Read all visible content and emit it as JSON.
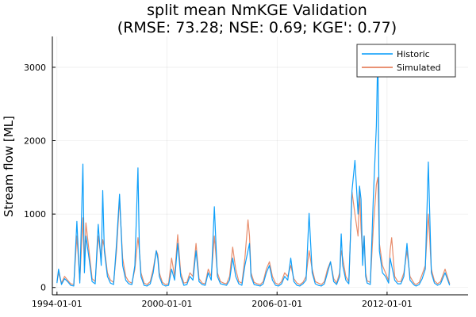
{
  "chart_data": {
    "type": "line",
    "title": "split mean NmKGE Validation",
    "subtitle": "(RMSE: 73.28; NSE: 0.69; KGE': 0.77)",
    "xlabel": "",
    "ylabel": "Stream flow [ML]",
    "xlim": [
      "1993-10-01",
      "2016-06-01"
    ],
    "ylim": [
      -100,
      3420
    ],
    "x_ticks": [
      "1994-01-01",
      "2000-01-01",
      "2006-01-01",
      "2012-01-01"
    ],
    "y_ticks": [
      0,
      1000,
      2000,
      3000
    ],
    "grid": true,
    "legend_position": "top-right",
    "series": [
      {
        "name": "Historic",
        "color": "#009AFA",
        "x": [
          "1994-01-01",
          "1994-02-01",
          "1994-04-01",
          "1994-06-01",
          "1994-08-01",
          "1994-10-01",
          "1994-12-01",
          "1995-02-01",
          "1995-04-01",
          "1995-06-01",
          "1995-07-01",
          "1995-08-01",
          "1995-10-01",
          "1995-12-01",
          "1996-02-01",
          "1996-04-01",
          "1996-06-01",
          "1996-07-01",
          "1996-08-01",
          "1996-10-01",
          "1996-12-01",
          "1997-02-01",
          "1997-04-01",
          "1997-06-01",
          "1997-08-01",
          "1997-10-01",
          "1997-12-01",
          "1998-02-01",
          "1998-04-01",
          "1998-06-01",
          "1998-07-01",
          "1998-08-01",
          "1998-10-01",
          "1998-12-01",
          "1999-02-01",
          "1999-04-01",
          "1999-06-01",
          "1999-07-01",
          "1999-08-01",
          "1999-10-01",
          "1999-12-01",
          "2000-02-01",
          "2000-04-01",
          "2000-06-01",
          "2000-08-01",
          "2000-10-01",
          "2000-12-01",
          "2001-02-01",
          "2001-04-01",
          "2001-06-01",
          "2001-08-01",
          "2001-10-01",
          "2001-12-01",
          "2002-02-01",
          "2002-04-01",
          "2002-06-01",
          "2002-08-01",
          "2002-10-01",
          "2002-12-01",
          "2003-02-01",
          "2003-04-01",
          "2003-06-01",
          "2003-08-01",
          "2003-10-01",
          "2003-12-01",
          "2004-02-01",
          "2004-04-01",
          "2004-06-01",
          "2004-07-01",
          "2004-08-01",
          "2004-10-01",
          "2004-12-01",
          "2005-02-01",
          "2005-04-01",
          "2005-06-01",
          "2005-08-01",
          "2005-10-01",
          "2005-12-01",
          "2006-02-01",
          "2006-04-01",
          "2006-06-01",
          "2006-08-01",
          "2006-10-01",
          "2006-12-01",
          "2007-02-01",
          "2007-04-01",
          "2007-06-01",
          "2007-08-01",
          "2007-10-01",
          "2007-12-01",
          "2008-02-01",
          "2008-04-01",
          "2008-06-01",
          "2008-08-01",
          "2008-10-01",
          "2008-12-01",
          "2009-02-01",
          "2009-04-01",
          "2009-06-01",
          "2009-07-01",
          "2009-08-01",
          "2009-10-01",
          "2009-12-01",
          "2010-02-01",
          "2010-04-01",
          "2010-06-01",
          "2010-07-01",
          "2010-08-01",
          "2010-09-01",
          "2010-10-01",
          "2010-11-01",
          "2010-12-01",
          "2011-02-01",
          "2011-04-01",
          "2011-06-01",
          "2011-07-01",
          "2011-08-01",
          "2011-10-01",
          "2011-12-01",
          "2012-02-01",
          "2012-03-01",
          "2012-04-01",
          "2012-06-01",
          "2012-08-01",
          "2012-10-01",
          "2012-12-01",
          "2013-02-01",
          "2013-04-01",
          "2013-06-01",
          "2013-07-01",
          "2013-08-01",
          "2013-10-01",
          "2013-12-01",
          "2014-02-01",
          "2014-04-01",
          "2014-06-01",
          "2014-08-01",
          "2014-10-01",
          "2014-12-01",
          "2015-03-01",
          "2015-06-01"
        ],
        "y": [
          60,
          250,
          40,
          120,
          80,
          30,
          20,
          900,
          60,
          1680,
          200,
          700,
          400,
          80,
          50,
          860,
          300,
          1320,
          500,
          150,
          60,
          40,
          600,
          1270,
          300,
          100,
          50,
          40,
          300,
          1630,
          500,
          150,
          30,
          20,
          50,
          200,
          500,
          400,
          150,
          40,
          20,
          30,
          250,
          100,
          600,
          150,
          30,
          40,
          150,
          100,
          500,
          80,
          40,
          30,
          200,
          100,
          1100,
          150,
          50,
          40,
          30,
          100,
          400,
          150,
          50,
          30,
          300,
          500,
          600,
          150,
          40,
          30,
          20,
          50,
          200,
          300,
          100,
          30,
          20,
          50,
          150,
          100,
          400,
          80,
          30,
          20,
          50,
          100,
          1010,
          200,
          50,
          30,
          20,
          50,
          200,
          350,
          80,
          40,
          150,
          730,
          300,
          100,
          50,
          1320,
          1730,
          1000,
          1380,
          1200,
          300,
          700,
          150,
          60,
          40,
          1200,
          2200,
          3260,
          500,
          200,
          150,
          60,
          400,
          300,
          100,
          50,
          50,
          150,
          600,
          100,
          50,
          30,
          20,
          40,
          120,
          250,
          1710,
          200,
          60,
          30,
          50,
          200,
          30
        ]
      },
      {
        "name": "Simulated",
        "color": "#E26F46",
        "x": [
          "1994-01-01",
          "1994-02-01",
          "1994-04-01",
          "1994-06-01",
          "1994-08-01",
          "1994-10-01",
          "1994-12-01",
          "1995-02-01",
          "1995-04-01",
          "1995-06-01",
          "1995-07-01",
          "1995-08-01",
          "1995-10-01",
          "1995-12-01",
          "1996-02-01",
          "1996-04-01",
          "1996-06-01",
          "1996-07-01",
          "1996-08-01",
          "1996-10-01",
          "1996-12-01",
          "1997-02-01",
          "1997-04-01",
          "1997-06-01",
          "1997-08-01",
          "1997-10-01",
          "1997-12-01",
          "1998-02-01",
          "1998-04-01",
          "1998-06-01",
          "1998-07-01",
          "1998-08-01",
          "1998-10-01",
          "1998-12-01",
          "1999-02-01",
          "1999-04-01",
          "1999-06-01",
          "1999-07-01",
          "1999-08-01",
          "1999-10-01",
          "1999-12-01",
          "2000-02-01",
          "2000-04-01",
          "2000-06-01",
          "2000-08-01",
          "2000-10-01",
          "2000-12-01",
          "2001-02-01",
          "2001-04-01",
          "2001-06-01",
          "2001-08-01",
          "2001-10-01",
          "2001-12-01",
          "2002-02-01",
          "2002-04-01",
          "2002-06-01",
          "2002-08-01",
          "2002-10-01",
          "2002-12-01",
          "2003-02-01",
          "2003-04-01",
          "2003-06-01",
          "2003-08-01",
          "2003-10-01",
          "2003-12-01",
          "2004-02-01",
          "2004-04-01",
          "2004-06-01",
          "2004-07-01",
          "2004-08-01",
          "2004-10-01",
          "2004-12-01",
          "2005-02-01",
          "2005-04-01",
          "2005-06-01",
          "2005-08-01",
          "2005-10-01",
          "2005-12-01",
          "2006-02-01",
          "2006-04-01",
          "2006-06-01",
          "2006-08-01",
          "2006-10-01",
          "2006-12-01",
          "2007-02-01",
          "2007-04-01",
          "2007-06-01",
          "2007-08-01",
          "2007-10-01",
          "2007-12-01",
          "2008-02-01",
          "2008-04-01",
          "2008-06-01",
          "2008-08-01",
          "2008-10-01",
          "2008-12-01",
          "2009-02-01",
          "2009-04-01",
          "2009-06-01",
          "2009-07-01",
          "2009-08-01",
          "2009-10-01",
          "2009-12-01",
          "2010-02-01",
          "2010-04-01",
          "2010-06-01",
          "2010-07-01",
          "2010-08-01",
          "2010-09-01",
          "2010-10-01",
          "2010-11-01",
          "2010-12-01",
          "2011-02-01",
          "2011-04-01",
          "2011-06-01",
          "2011-07-01",
          "2011-08-01",
          "2011-10-01",
          "2011-12-01",
          "2012-02-01",
          "2012-03-01",
          "2012-04-01",
          "2012-06-01",
          "2012-08-01",
          "2012-10-01",
          "2012-12-01",
          "2013-02-01",
          "2013-04-01",
          "2013-06-01",
          "2013-07-01",
          "2013-08-01",
          "2013-10-01",
          "2013-12-01",
          "2014-02-01",
          "2014-04-01",
          "2014-06-01",
          "2014-08-01",
          "2014-10-01",
          "2014-12-01",
          "2015-03-01",
          "2015-06-01"
        ],
        "y": [
          80,
          200,
          60,
          150,
          100,
          50,
          40,
          700,
          100,
          950,
          300,
          880,
          500,
          120,
          80,
          700,
          400,
          650,
          550,
          200,
          100,
          70,
          500,
          1200,
          400,
          150,
          80,
          60,
          250,
          680,
          500,
          200,
          60,
          40,
          80,
          250,
          500,
          450,
          200,
          70,
          40,
          50,
          400,
          150,
          720,
          200,
          60,
          70,
          200,
          150,
          600,
          120,
          60,
          50,
          250,
          150,
          700,
          200,
          80,
          60,
          50,
          150,
          550,
          250,
          80,
          60,
          400,
          920,
          700,
          200,
          70,
          50,
          40,
          80,
          250,
          350,
          150,
          60,
          40,
          80,
          200,
          150,
          300,
          120,
          60,
          40,
          70,
          150,
          500,
          250,
          80,
          60,
          40,
          80,
          250,
          350,
          120,
          60,
          200,
          500,
          400,
          150,
          80,
          1300,
          1000,
          700,
          1300,
          800,
          450,
          700,
          200,
          90,
          70,
          800,
          1400,
          1500,
          600,
          300,
          200,
          90,
          500,
          680,
          150,
          80,
          80,
          200,
          500,
          150,
          80,
          50,
          40,
          70,
          180,
          300,
          1000,
          250,
          90,
          50,
          80,
          250,
          50
        ]
      }
    ]
  }
}
